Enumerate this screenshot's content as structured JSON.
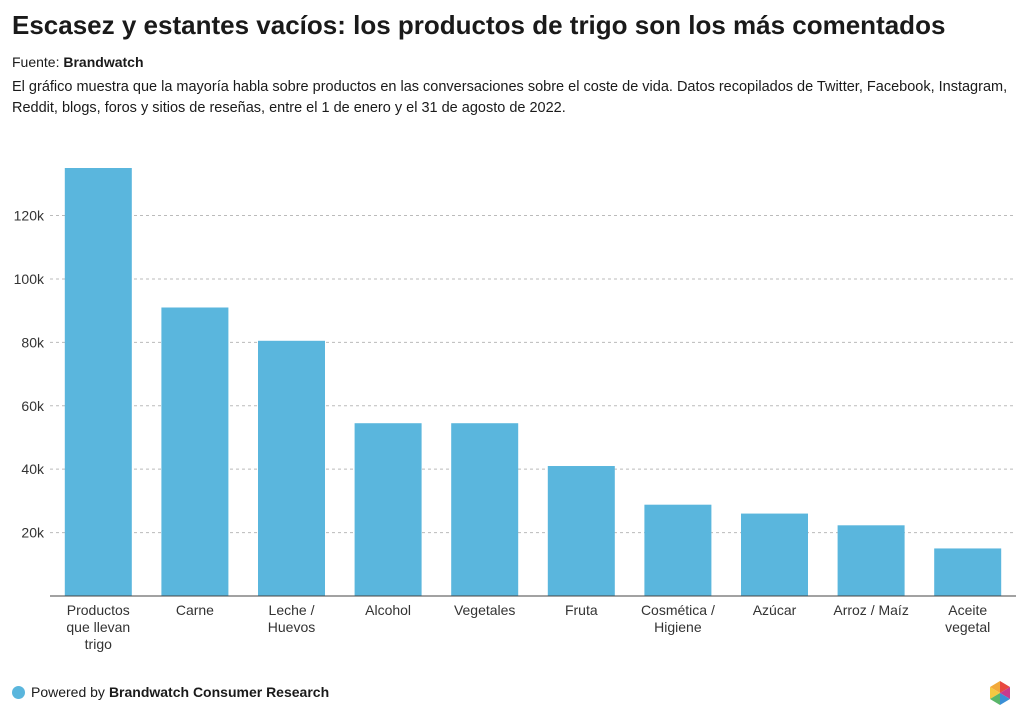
{
  "header": {
    "title": "Escasez y estantes vacíos: los productos de trigo son los más comentados",
    "source_label": "Fuente:",
    "source_name": "Brandwatch",
    "description": "El gráfico muestra que la mayoría habla sobre productos en las conversaciones sobre el coste de vida. Datos recopilados de Twitter, Facebook, Instagram, Reddit, blogs, foros y sitios de reseñas, entre el 1 de enero y el 31 de agosto de 2022."
  },
  "footer": {
    "powered_label": "Powered by",
    "powered_name": "Brandwatch Consumer Research",
    "dot_color": "#5ab6dd",
    "logo_icon": "brandwatch-hexagon-logo"
  },
  "colors": {
    "bar": "#5ab6dd",
    "grid": "#bbbbbb",
    "axis": "#444444"
  },
  "chart_data": {
    "type": "bar",
    "categories": [
      [
        "Productos",
        "que llevan",
        "trigo"
      ],
      [
        "Carne"
      ],
      [
        "Leche /",
        "Huevos"
      ],
      [
        "Alcohol"
      ],
      [
        "Vegetales"
      ],
      [
        "Fruta"
      ],
      [
        "Cosmética /",
        "Higiene"
      ],
      [
        "Azúcar"
      ],
      [
        "Arroz / Maíz"
      ],
      [
        "Aceite",
        "vegetal"
      ]
    ],
    "values": [
      135000,
      91000,
      80500,
      54500,
      54500,
      41000,
      28800,
      26000,
      22300,
      15000
    ],
    "yticks": [
      20000,
      40000,
      60000,
      80000,
      100000,
      120000
    ],
    "ytick_labels": [
      "20k",
      "40k",
      "60k",
      "80k",
      "100k",
      "120k"
    ],
    "ylim": [
      0,
      135000
    ],
    "grid": true,
    "grid_style": "dashed-horizontal",
    "legend": "none",
    "title": "",
    "xlabel": "",
    "ylabel": ""
  }
}
